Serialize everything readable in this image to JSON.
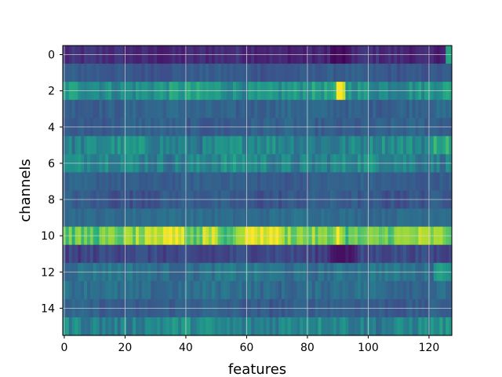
{
  "chart_data": {
    "type": "heatmap",
    "xlabel": "features",
    "ylabel": "channels",
    "x_range": [
      -0.5,
      127.5
    ],
    "y_range": [
      -0.5,
      15.5
    ],
    "x_ticks": [
      0,
      20,
      40,
      60,
      80,
      100,
      120
    ],
    "y_ticks": [
      0,
      2,
      4,
      6,
      8,
      10,
      12,
      14
    ],
    "y_inverted": true,
    "grid": true,
    "colormap": "viridis",
    "n_features": 128,
    "n_channels": 16,
    "row_profiles": [
      {
        "channel": 0,
        "base": 0.14,
        "var": 0.05,
        "spots": [
          [
            91,
            3,
            -0.12
          ],
          [
            127,
            1,
            0.45
          ]
        ]
      },
      {
        "channel": 1,
        "base": 0.28,
        "var": 0.04,
        "spots": []
      },
      {
        "channel": 2,
        "base": 0.52,
        "var": 0.1,
        "spots": [
          [
            91,
            1,
            0.4
          ]
        ]
      },
      {
        "channel": 3,
        "base": 0.32,
        "var": 0.05,
        "spots": []
      },
      {
        "channel": 4,
        "base": 0.3,
        "var": 0.05,
        "spots": []
      },
      {
        "channel": 5,
        "base": 0.46,
        "var": 0.1,
        "spots": [
          [
            125,
            3,
            0.2
          ]
        ]
      },
      {
        "channel": 6,
        "base": 0.46,
        "var": 0.1,
        "spots": []
      },
      {
        "channel": 7,
        "base": 0.3,
        "var": 0.04,
        "spots": []
      },
      {
        "channel": 8,
        "base": 0.28,
        "var": 0.05,
        "spots": []
      },
      {
        "channel": 9,
        "base": 0.36,
        "var": 0.04,
        "spots": []
      },
      {
        "channel": 10,
        "base": 0.78,
        "var": 0.12,
        "spots": [
          [
            36,
            3,
            0.2
          ],
          [
            48,
            2,
            0.2
          ],
          [
            64,
            6,
            0.2
          ],
          [
            90,
            1,
            0.2
          ]
        ]
      },
      {
        "channel": 11,
        "base": 0.22,
        "var": 0.05,
        "spots": [
          [
            92,
            4,
            -0.12
          ]
        ]
      },
      {
        "channel": 12,
        "base": 0.38,
        "var": 0.06,
        "spots": [
          [
            125,
            3,
            0.2
          ]
        ]
      },
      {
        "channel": 13,
        "base": 0.36,
        "var": 0.06,
        "spots": []
      },
      {
        "channel": 14,
        "base": 0.3,
        "var": 0.05,
        "spots": []
      },
      {
        "channel": 15,
        "base": 0.46,
        "var": 0.1,
        "spots": []
      }
    ]
  }
}
